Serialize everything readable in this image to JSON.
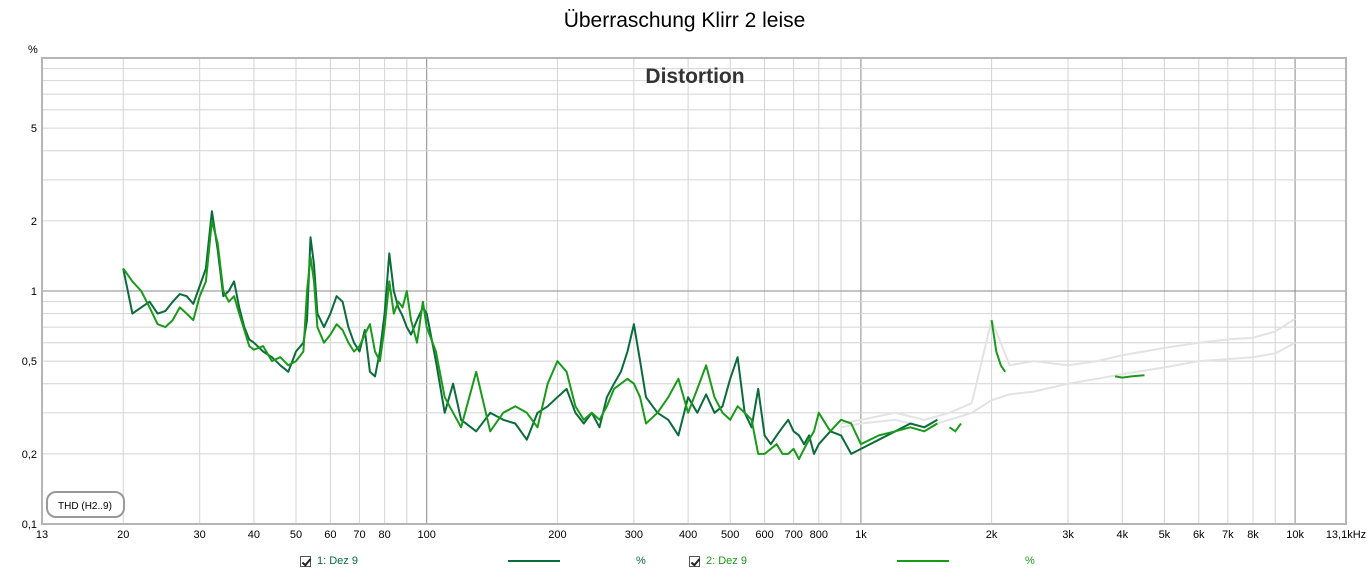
{
  "window": {
    "title": "Überraschung Klirr 2 leise"
  },
  "axis": {
    "unit_y": "%"
  },
  "chart_data": {
    "type": "line",
    "title": "Distortion",
    "badge": "THD (H2..9)",
    "x_scale": "log",
    "y_scale": "log",
    "xlim": [
      13,
      13100
    ],
    "ylim": [
      0.1,
      10
    ],
    "x_ticks": [
      {
        "v": 13,
        "label": "13"
      },
      {
        "v": 20,
        "label": "20"
      },
      {
        "v": 30,
        "label": "30"
      },
      {
        "v": 40,
        "label": "40"
      },
      {
        "v": 50,
        "label": "50"
      },
      {
        "v": 60,
        "label": "60"
      },
      {
        "v": 70,
        "label": "70"
      },
      {
        "v": 80,
        "label": "80"
      },
      {
        "v": 100,
        "label": "100"
      },
      {
        "v": 200,
        "label": "200"
      },
      {
        "v": 300,
        "label": "300"
      },
      {
        "v": 400,
        "label": "400"
      },
      {
        "v": 500,
        "label": "500"
      },
      {
        "v": 600,
        "label": "600"
      },
      {
        "v": 700,
        "label": "700"
      },
      {
        "v": 800,
        "label": "800"
      },
      {
        "v": 1000,
        "label": "1k"
      },
      {
        "v": 2000,
        "label": "2k"
      },
      {
        "v": 3000,
        "label": "3k"
      },
      {
        "v": 4000,
        "label": "4k"
      },
      {
        "v": 5000,
        "label": "5k"
      },
      {
        "v": 6000,
        "label": "6k"
      },
      {
        "v": 7000,
        "label": "7k"
      },
      {
        "v": 8000,
        "label": "8k"
      },
      {
        "v": 10000,
        "label": "10k"
      },
      {
        "v": 13100,
        "label": "13,1kHz"
      }
    ],
    "y_ticks": [
      {
        "v": 0.1,
        "label": "0,1"
      },
      {
        "v": 0.2,
        "label": "0,2"
      },
      {
        "v": 0.5,
        "label": "0,5"
      },
      {
        "v": 1,
        "label": "1"
      },
      {
        "v": 2,
        "label": "2"
      },
      {
        "v": 5,
        "label": "5"
      }
    ],
    "series": [
      {
        "name": "1: Dez 9",
        "unit": "%",
        "color": "#0b6b3a",
        "points": [
          [
            20,
            1.25
          ],
          [
            21,
            0.8
          ],
          [
            22,
            0.85
          ],
          [
            23,
            0.9
          ],
          [
            24,
            0.8
          ],
          [
            25,
            0.82
          ],
          [
            26,
            0.9
          ],
          [
            27,
            0.97
          ],
          [
            28,
            0.95
          ],
          [
            29,
            0.88
          ],
          [
            30,
            1.05
          ],
          [
            31,
            1.25
          ],
          [
            32,
            2.2
          ],
          [
            33,
            1.5
          ],
          [
            34,
            0.95
          ],
          [
            35,
            1.0
          ],
          [
            36,
            1.1
          ],
          [
            37,
            0.85
          ],
          [
            38,
            0.7
          ],
          [
            39,
            0.62
          ],
          [
            40,
            0.6
          ],
          [
            42,
            0.55
          ],
          [
            44,
            0.52
          ],
          [
            46,
            0.48
          ],
          [
            48,
            0.45
          ],
          [
            50,
            0.55
          ],
          [
            52,
            0.6
          ],
          [
            53,
            0.75
          ],
          [
            54,
            1.7
          ],
          [
            55,
            1.3
          ],
          [
            56,
            0.8
          ],
          [
            58,
            0.7
          ],
          [
            60,
            0.8
          ],
          [
            62,
            0.95
          ],
          [
            64,
            0.9
          ],
          [
            66,
            0.7
          ],
          [
            68,
            0.6
          ],
          [
            70,
            0.55
          ],
          [
            72,
            0.68
          ],
          [
            74,
            0.45
          ],
          [
            76,
            0.43
          ],
          [
            78,
            0.55
          ],
          [
            80,
            0.8
          ],
          [
            82,
            1.45
          ],
          [
            84,
            1.0
          ],
          [
            86,
            0.85
          ],
          [
            88,
            0.78
          ],
          [
            90,
            0.7
          ],
          [
            92,
            0.65
          ],
          [
            95,
            0.75
          ],
          [
            98,
            0.85
          ],
          [
            100,
            0.8
          ],
          [
            105,
            0.5
          ],
          [
            110,
            0.3
          ],
          [
            115,
            0.4
          ],
          [
            120,
            0.28
          ],
          [
            130,
            0.25
          ],
          [
            140,
            0.3
          ],
          [
            150,
            0.28
          ],
          [
            160,
            0.27
          ],
          [
            170,
            0.23
          ],
          [
            180,
            0.3
          ],
          [
            190,
            0.32
          ],
          [
            200,
            0.35
          ],
          [
            210,
            0.38
          ],
          [
            220,
            0.3
          ],
          [
            230,
            0.27
          ],
          [
            240,
            0.3
          ],
          [
            250,
            0.26
          ],
          [
            260,
            0.35
          ],
          [
            270,
            0.4
          ],
          [
            280,
            0.45
          ],
          [
            290,
            0.55
          ],
          [
            300,
            0.72
          ],
          [
            310,
            0.5
          ],
          [
            320,
            0.35
          ],
          [
            340,
            0.3
          ],
          [
            360,
            0.28
          ],
          [
            380,
            0.24
          ],
          [
            400,
            0.35
          ],
          [
            420,
            0.3
          ],
          [
            440,
            0.36
          ],
          [
            460,
            0.3
          ],
          [
            480,
            0.32
          ],
          [
            500,
            0.42
          ],
          [
            520,
            0.52
          ],
          [
            540,
            0.3
          ],
          [
            560,
            0.26
          ],
          [
            580,
            0.38
          ],
          [
            600,
            0.24
          ],
          [
            620,
            0.22
          ],
          [
            640,
            0.24
          ],
          [
            660,
            0.26
          ],
          [
            680,
            0.28
          ],
          [
            700,
            0.25
          ],
          [
            720,
            0.24
          ],
          [
            740,
            0.22
          ],
          [
            760,
            0.24
          ],
          [
            780,
            0.2
          ],
          [
            800,
            0.22
          ],
          [
            850,
            0.25
          ],
          [
            900,
            0.24
          ],
          [
            950,
            0.2
          ],
          [
            1000,
            0.21
          ],
          [
            1100,
            0.23
          ],
          [
            1200,
            0.25
          ],
          [
            1300,
            0.27
          ],
          [
            1400,
            0.26
          ],
          [
            1500,
            0.28
          ]
        ]
      },
      {
        "name": "2: Dez 9",
        "unit": "%",
        "color": "#1a9a1a",
        "points": [
          [
            20,
            1.25
          ],
          [
            21,
            1.1
          ],
          [
            22,
            1.0
          ],
          [
            23,
            0.85
          ],
          [
            24,
            0.72
          ],
          [
            25,
            0.7
          ],
          [
            26,
            0.75
          ],
          [
            27,
            0.85
          ],
          [
            28,
            0.8
          ],
          [
            29,
            0.75
          ],
          [
            30,
            0.95
          ],
          [
            31,
            1.1
          ],
          [
            32,
            2.0
          ],
          [
            33,
            1.6
          ],
          [
            34,
            1.0
          ],
          [
            35,
            0.9
          ],
          [
            36,
            0.95
          ],
          [
            37,
            0.8
          ],
          [
            38,
            0.68
          ],
          [
            39,
            0.58
          ],
          [
            40,
            0.56
          ],
          [
            42,
            0.58
          ],
          [
            44,
            0.5
          ],
          [
            46,
            0.52
          ],
          [
            48,
            0.48
          ],
          [
            50,
            0.5
          ],
          [
            52,
            0.55
          ],
          [
            53,
            1.0
          ],
          [
            54,
            1.4
          ],
          [
            55,
            1.1
          ],
          [
            56,
            0.7
          ],
          [
            58,
            0.6
          ],
          [
            60,
            0.65
          ],
          [
            62,
            0.72
          ],
          [
            64,
            0.68
          ],
          [
            66,
            0.6
          ],
          [
            68,
            0.55
          ],
          [
            70,
            0.58
          ],
          [
            72,
            0.65
          ],
          [
            74,
            0.72
          ],
          [
            76,
            0.55
          ],
          [
            78,
            0.5
          ],
          [
            80,
            0.7
          ],
          [
            82,
            1.1
          ],
          [
            84,
            0.8
          ],
          [
            86,
            0.9
          ],
          [
            88,
            0.85
          ],
          [
            90,
            1.0
          ],
          [
            92,
            0.75
          ],
          [
            95,
            0.6
          ],
          [
            98,
            0.9
          ],
          [
            100,
            0.7
          ],
          [
            105,
            0.55
          ],
          [
            110,
            0.35
          ],
          [
            115,
            0.3
          ],
          [
            120,
            0.26
          ],
          [
            130,
            0.45
          ],
          [
            140,
            0.25
          ],
          [
            150,
            0.3
          ],
          [
            160,
            0.32
          ],
          [
            170,
            0.3
          ],
          [
            180,
            0.26
          ],
          [
            190,
            0.4
          ],
          [
            200,
            0.5
          ],
          [
            210,
            0.45
          ],
          [
            220,
            0.32
          ],
          [
            230,
            0.28
          ],
          [
            240,
            0.3
          ],
          [
            250,
            0.28
          ],
          [
            260,
            0.32
          ],
          [
            270,
            0.38
          ],
          [
            280,
            0.4
          ],
          [
            290,
            0.42
          ],
          [
            300,
            0.4
          ],
          [
            310,
            0.35
          ],
          [
            320,
            0.27
          ],
          [
            340,
            0.3
          ],
          [
            360,
            0.35
          ],
          [
            380,
            0.42
          ],
          [
            400,
            0.3
          ],
          [
            420,
            0.38
          ],
          [
            440,
            0.48
          ],
          [
            460,
            0.35
          ],
          [
            480,
            0.3
          ],
          [
            500,
            0.28
          ],
          [
            520,
            0.32
          ],
          [
            540,
            0.3
          ],
          [
            560,
            0.28
          ],
          [
            580,
            0.2
          ],
          [
            600,
            0.2
          ],
          [
            620,
            0.21
          ],
          [
            640,
            0.22
          ],
          [
            660,
            0.2
          ],
          [
            680,
            0.2
          ],
          [
            700,
            0.21
          ],
          [
            720,
            0.19
          ],
          [
            740,
            0.21
          ],
          [
            760,
            0.23
          ],
          [
            780,
            0.25
          ],
          [
            800,
            0.3
          ],
          [
            850,
            0.25
          ],
          [
            900,
            0.28
          ],
          [
            950,
            0.27
          ],
          [
            1000,
            0.22
          ],
          [
            1100,
            0.24
          ],
          [
            1200,
            0.25
          ],
          [
            1300,
            0.26
          ],
          [
            1400,
            0.25
          ],
          [
            1500,
            0.27
          ]
        ]
      }
    ],
    "reference_curves": [
      {
        "color": "#e3e3e3",
        "points": [
          [
            900,
            0.27
          ],
          [
            1000,
            0.28
          ],
          [
            1200,
            0.3
          ],
          [
            1400,
            0.28
          ],
          [
            1600,
            0.3
          ],
          [
            1800,
            0.33
          ],
          [
            2000,
            0.75
          ],
          [
            2200,
            0.48
          ],
          [
            2500,
            0.5
          ],
          [
            3000,
            0.48
          ],
          [
            3500,
            0.5
          ],
          [
            4000,
            0.53
          ],
          [
            5000,
            0.57
          ],
          [
            6000,
            0.6
          ],
          [
            7000,
            0.62
          ],
          [
            8000,
            0.63
          ],
          [
            9000,
            0.67
          ],
          [
            10000,
            0.76
          ]
        ]
      },
      {
        "color": "#e3e3e3",
        "points": [
          [
            900,
            0.26
          ],
          [
            1000,
            0.27
          ],
          [
            1200,
            0.28
          ],
          [
            1400,
            0.26
          ],
          [
            1600,
            0.28
          ],
          [
            1800,
            0.3
          ],
          [
            2000,
            0.34
          ],
          [
            2200,
            0.36
          ],
          [
            2500,
            0.37
          ],
          [
            3000,
            0.4
          ],
          [
            3500,
            0.42
          ],
          [
            4000,
            0.44
          ],
          [
            5000,
            0.47
          ],
          [
            6000,
            0.5
          ],
          [
            7000,
            0.51
          ],
          [
            8000,
            0.52
          ],
          [
            9000,
            0.54
          ],
          [
            10000,
            0.6
          ]
        ]
      }
    ],
    "overlay_segments": [
      {
        "color": "#1a9a1a",
        "points": [
          [
            1600,
            0.26
          ],
          [
            1650,
            0.25
          ],
          [
            1700,
            0.27
          ]
        ]
      },
      {
        "color": "#1a9a1a",
        "points": [
          [
            2000,
            0.75
          ],
          [
            2050,
            0.55
          ],
          [
            2100,
            0.48
          ],
          [
            2150,
            0.45
          ]
        ]
      },
      {
        "color": "#1a9a1a",
        "points": [
          [
            3850,
            0.43
          ],
          [
            4000,
            0.425
          ],
          [
            4200,
            0.43
          ],
          [
            4500,
            0.435
          ]
        ]
      }
    ]
  },
  "legend": {
    "items": [
      {
        "label": "1: Dez 9",
        "unit": "%"
      },
      {
        "label": "2: Dez 9",
        "unit": "%"
      }
    ]
  }
}
